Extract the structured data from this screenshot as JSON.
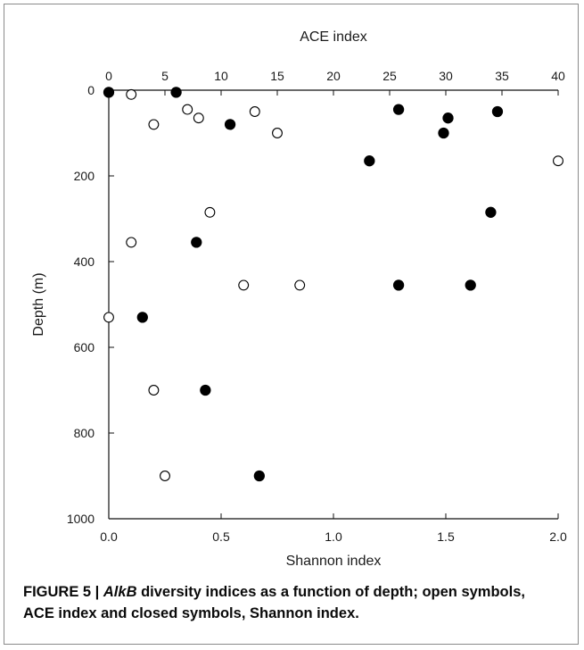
{
  "caption": {
    "prefix": "FIGURE 5 | ",
    "gene": "AlkB",
    "text": " diversity indices as a function of depth; open symbols, ACE index and closed symbols, Shannon index."
  },
  "chart_data": {
    "type": "scatter",
    "ylabel": "Depth (m)",
    "ylim": [
      0,
      1000
    ],
    "y_reversed": true,
    "yticks": [
      "0",
      "200",
      "400",
      "600",
      "800",
      "1000"
    ],
    "top_axis": {
      "label": "ACE index",
      "lim": [
        0,
        40
      ],
      "ticks": [
        "0",
        "5",
        "10",
        "15",
        "20",
        "25",
        "30",
        "35",
        "40"
      ]
    },
    "bottom_axis": {
      "label": "Shannon index",
      "lim": [
        0,
        2
      ],
      "ticks": [
        "0.0",
        "0.5",
        "1.0",
        "1.5",
        "2.0"
      ]
    },
    "series": [
      {
        "marker": "open",
        "axis": "top",
        "points": [
          {
            "x": 2,
            "y": 10
          },
          {
            "x": 7,
            "y": 45
          },
          {
            "x": 8,
            "y": 65
          },
          {
            "x": 4,
            "y": 80
          },
          {
            "x": 13,
            "y": 50
          },
          {
            "x": 15,
            "y": 100
          },
          {
            "x": 40,
            "y": 165
          },
          {
            "x": 9,
            "y": 285
          },
          {
            "x": 2,
            "y": 355
          },
          {
            "x": 12,
            "y": 455
          },
          {
            "x": 17,
            "y": 455
          },
          {
            "x": 0,
            "y": 530
          },
          {
            "x": 4,
            "y": 700
          },
          {
            "x": 5,
            "y": 900
          }
        ]
      },
      {
        "marker": "filled",
        "axis": "bottom",
        "points": [
          {
            "x": 0.0,
            "y": 5
          },
          {
            "x": 0.3,
            "y": 5
          },
          {
            "x": 0.54,
            "y": 80
          },
          {
            "x": 1.29,
            "y": 45
          },
          {
            "x": 1.51,
            "y": 65
          },
          {
            "x": 1.49,
            "y": 100
          },
          {
            "x": 1.73,
            "y": 50
          },
          {
            "x": 1.16,
            "y": 165
          },
          {
            "x": 1.7,
            "y": 285
          },
          {
            "x": 0.39,
            "y": 355
          },
          {
            "x": 1.29,
            "y": 455
          },
          {
            "x": 1.61,
            "y": 455
          },
          {
            "x": 0.15,
            "y": 530
          },
          {
            "x": 0.43,
            "y": 700
          },
          {
            "x": 0.67,
            "y": 900
          }
        ]
      }
    ]
  }
}
